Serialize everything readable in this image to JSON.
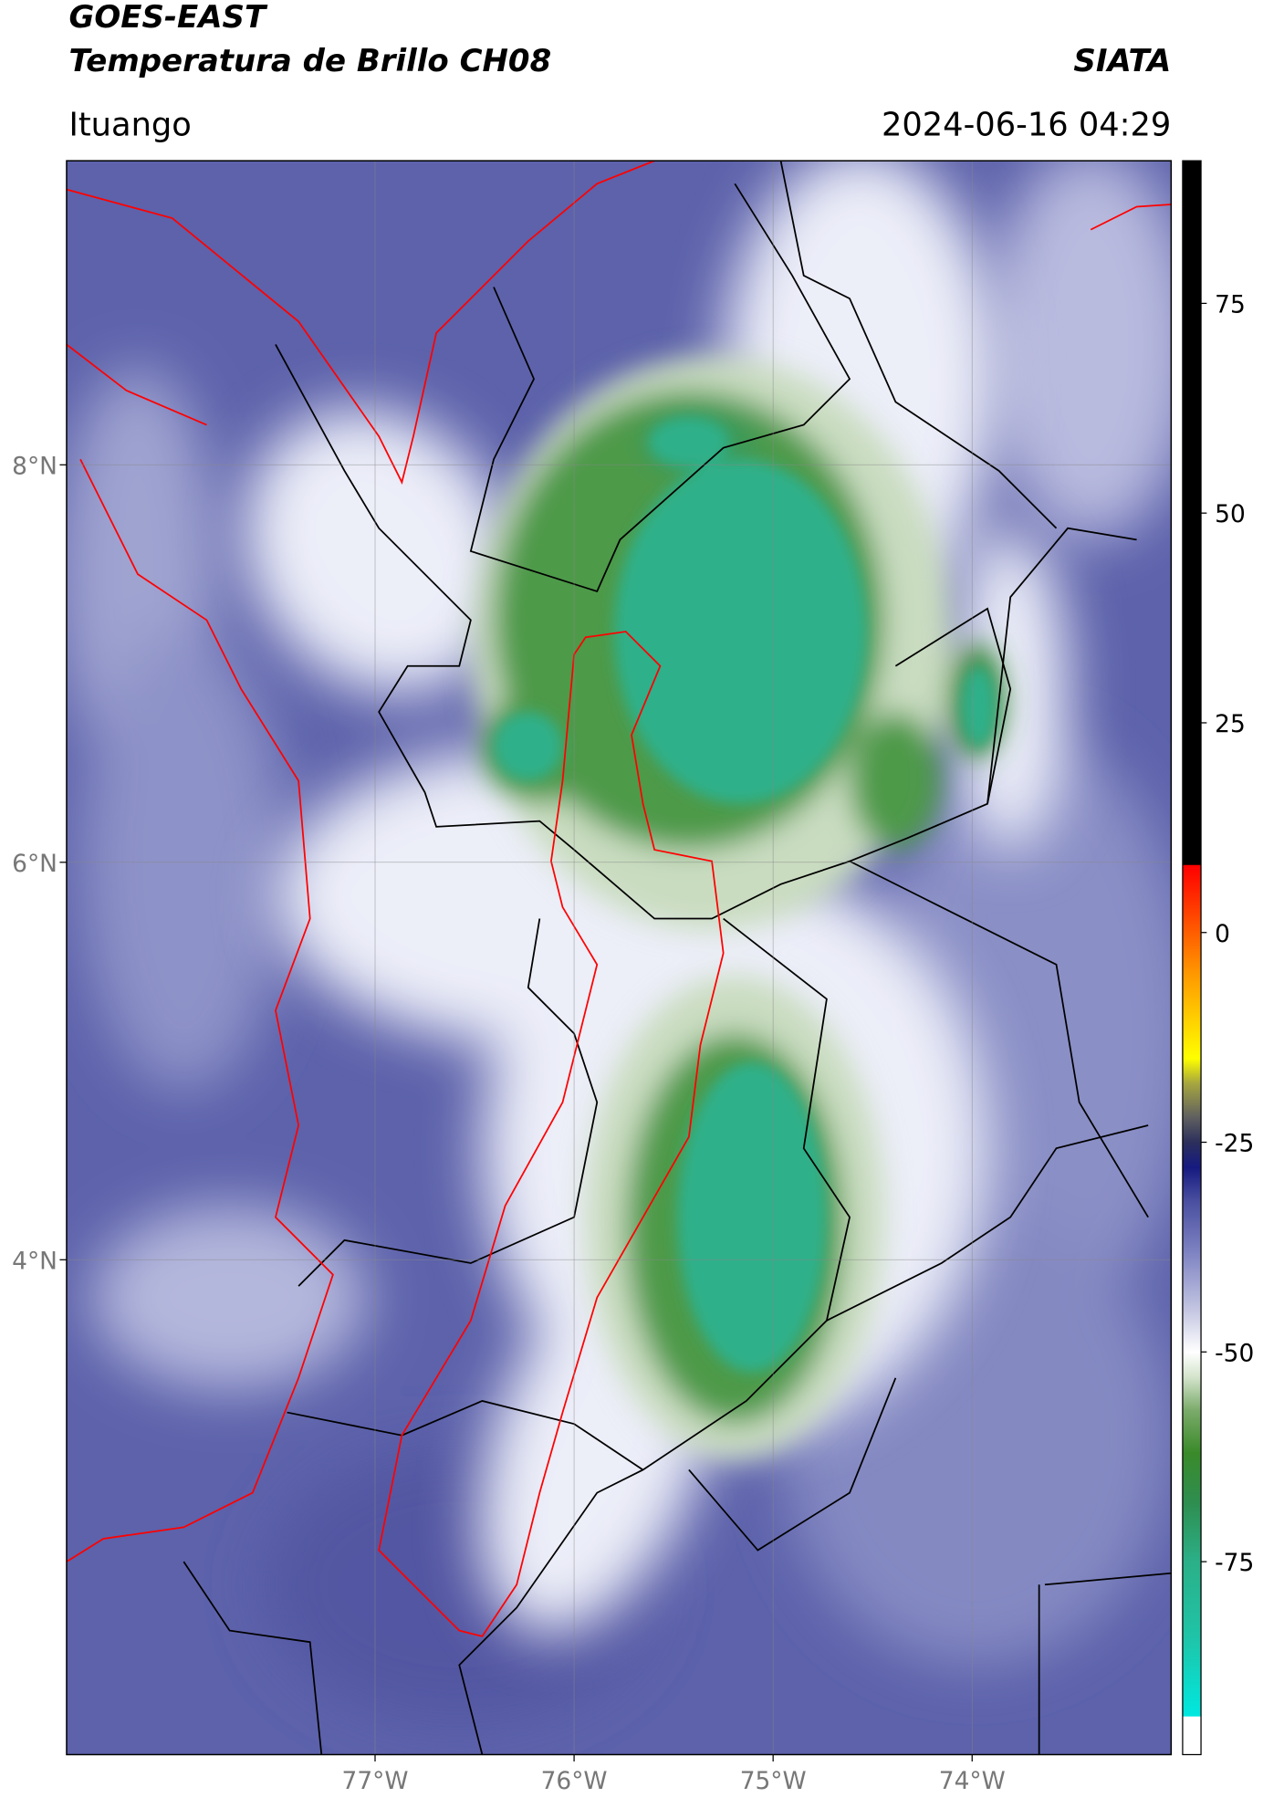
{
  "header": {
    "satellite": "GOES-EAST",
    "product": "Temperatura de Brillo CH08",
    "agency": "SIATA",
    "location": "Ituango",
    "datetime": "2024-06-16 04:29"
  },
  "map": {
    "xlim": [
      -78.55,
      -73.0
    ],
    "ylim": [
      1.51,
      9.53
    ],
    "xticks": [
      {
        "value": -77,
        "label": "77°W"
      },
      {
        "value": -76,
        "label": "76°W"
      },
      {
        "value": -75,
        "label": "75°W"
      },
      {
        "value": -74,
        "label": "74°W"
      }
    ],
    "yticks": [
      {
        "value": 8,
        "label": "8°N"
      },
      {
        "value": 6,
        "label": "6°N"
      },
      {
        "value": 4,
        "label": "4°N"
      }
    ],
    "grid": true
  },
  "colorbar": {
    "lim": [
      -98,
      92
    ],
    "ticks": [
      75,
      50,
      25,
      0,
      -25,
      -50,
      -75
    ],
    "colormap": [
      {
        "value": -98,
        "color": "#ffffff"
      },
      {
        "value": -93.5,
        "color": "#ffffff"
      },
      {
        "value": -93.4,
        "color": "#00e8e0"
      },
      {
        "value": -84,
        "color": "#1fc4a8"
      },
      {
        "value": -75,
        "color": "#2bb088"
      },
      {
        "value": -68,
        "color": "#2e8e50"
      },
      {
        "value": -62,
        "color": "#3a8a2a"
      },
      {
        "value": -57,
        "color": "#7aaa6a"
      },
      {
        "value": -53,
        "color": "#d4e4cc"
      },
      {
        "value": -50,
        "color": "#ffffff"
      },
      {
        "value": -45,
        "color": "#c4c6e2"
      },
      {
        "value": -38,
        "color": "#7d82c2"
      },
      {
        "value": -32,
        "color": "#4a4fa0"
      },
      {
        "value": -28,
        "color": "#161a80"
      },
      {
        "value": -25,
        "color": "#2c2f5c"
      },
      {
        "value": -22,
        "color": "#606060"
      },
      {
        "value": -18,
        "color": "#a6a640"
      },
      {
        "value": -15,
        "color": "#ffff00"
      },
      {
        "value": -5,
        "color": "#ff9900"
      },
      {
        "value": 5,
        "color": "#ff2200"
      },
      {
        "value": 8,
        "color": "#ff0000"
      },
      {
        "value": 8.1,
        "color": "#000000"
      },
      {
        "value": 92,
        "color": "#000000"
      }
    ]
  }
}
